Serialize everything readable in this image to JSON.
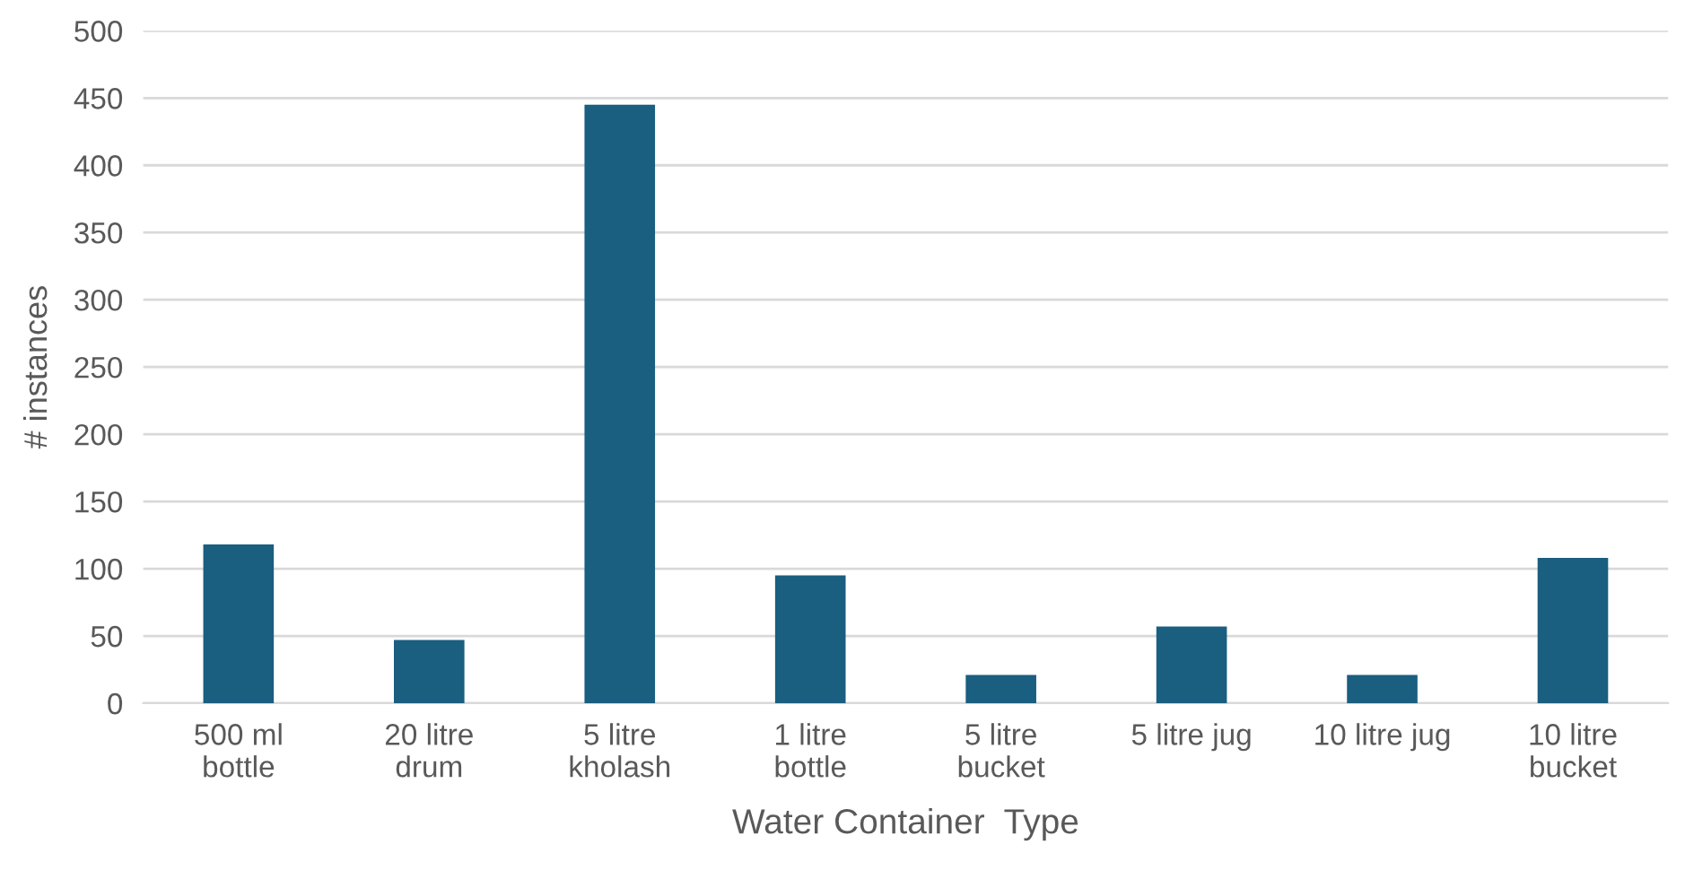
{
  "chart_data": {
    "type": "bar",
    "xlabel": "Water Container  Type",
    "ylabel": "# instances",
    "categories": [
      "500 ml\nbottle",
      "20 litre\ndrum",
      "5 litre\nkholash",
      "1 litre\nbottle",
      "5 litre\nbucket",
      "5 litre jug",
      "10 litre jug",
      "10 litre\nbucket"
    ],
    "values": [
      118,
      47,
      445,
      95,
      21,
      57,
      21,
      108
    ],
    "color": "#1a5e80",
    "ylim": [
      0,
      500
    ],
    "yticks": [
      0,
      50,
      100,
      150,
      200,
      250,
      300,
      350,
      400,
      450,
      500
    ],
    "grid": "y"
  }
}
